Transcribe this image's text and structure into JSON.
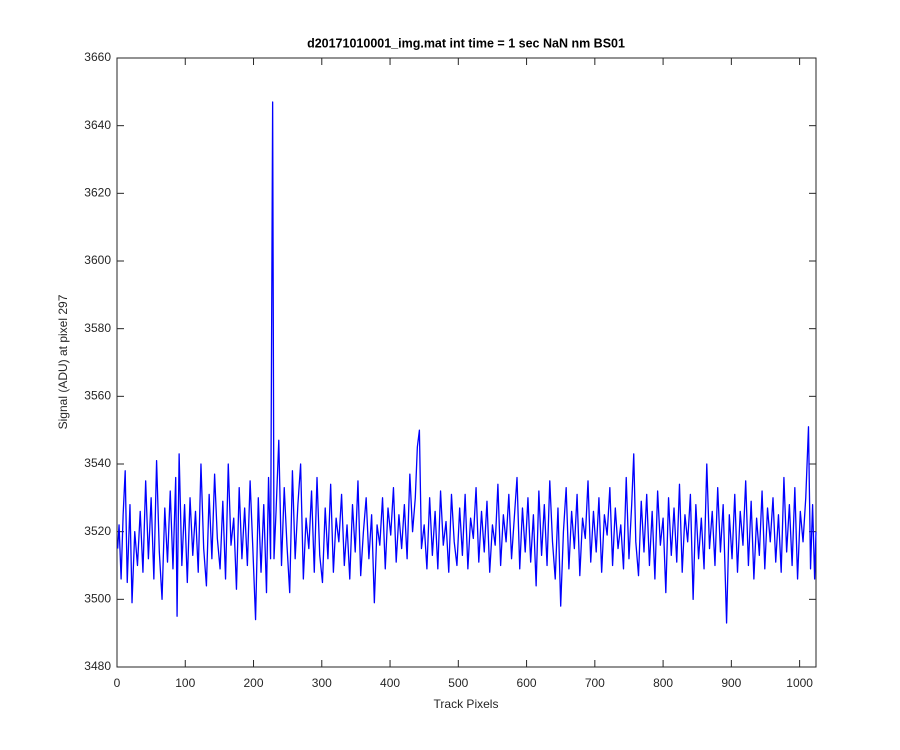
{
  "chart_data": {
    "type": "line",
    "title": "d20171010001_img.mat int time = 1 sec  NaN nm BS01",
    "xlabel": "Track Pixels",
    "ylabel": "Signal (ADU) at pixel 297",
    "color": "#0000ff",
    "xlim": [
      0,
      1024
    ],
    "ylim": [
      3480,
      3660
    ],
    "xticks": [
      0,
      100,
      200,
      300,
      400,
      500,
      600,
      700,
      800,
      900,
      1000
    ],
    "yticks": [
      3480,
      3500,
      3520,
      3540,
      3560,
      3580,
      3600,
      3620,
      3640,
      3660
    ],
    "x": [
      1,
      3,
      6,
      9,
      12,
      15,
      19,
      22,
      26,
      30,
      34,
      38,
      42,
      46,
      50,
      54,
      58,
      62,
      66,
      70,
      74,
      78,
      82,
      86,
      88,
      91,
      95,
      99,
      103,
      107,
      111,
      115,
      119,
      123,
      127,
      131,
      135,
      139,
      143,
      147,
      151,
      155,
      159,
      163,
      167,
      171,
      175,
      179,
      183,
      187,
      191,
      195,
      199,
      203,
      207,
      211,
      215,
      219,
      222,
      225,
      228,
      230,
      233,
      237,
      241,
      245,
      249,
      253,
      257,
      261,
      265,
      269,
      273,
      277,
      281,
      285,
      289,
      293,
      297,
      301,
      305,
      309,
      313,
      317,
      321,
      325,
      329,
      333,
      337,
      341,
      345,
      349,
      353,
      357,
      361,
      365,
      369,
      373,
      377,
      381,
      385,
      389,
      393,
      397,
      401,
      405,
      409,
      413,
      417,
      421,
      425,
      429,
      433,
      437,
      440,
      443,
      446,
      450,
      454,
      458,
      462,
      466,
      470,
      474,
      478,
      482,
      486,
      490,
      494,
      498,
      502,
      506,
      510,
      514,
      518,
      522,
      526,
      530,
      534,
      538,
      542,
      546,
      550,
      554,
      558,
      562,
      566,
      570,
      574,
      578,
      582,
      586,
      590,
      594,
      598,
      602,
      606,
      610,
      614,
      618,
      622,
      626,
      630,
      634,
      638,
      642,
      646,
      650,
      654,
      658,
      662,
      666,
      670,
      674,
      678,
      682,
      686,
      690,
      694,
      698,
      702,
      706,
      710,
      714,
      718,
      722,
      726,
      730,
      734,
      738,
      742,
      746,
      750,
      754,
      757,
      760,
      764,
      768,
      772,
      776,
      780,
      784,
      788,
      792,
      796,
      800,
      804,
      808,
      812,
      816,
      820,
      824,
      828,
      832,
      836,
      840,
      844,
      848,
      852,
      856,
      860,
      864,
      868,
      872,
      876,
      880,
      884,
      888,
      893,
      897,
      901,
      905,
      909,
      913,
      917,
      921,
      925,
      929,
      933,
      937,
      941,
      945,
      949,
      953,
      957,
      961,
      965,
      969,
      973,
      977,
      981,
      985,
      989,
      993,
      997,
      1001,
      1005,
      1009,
      1013,
      1016,
      1019,
      1022,
      1024
    ],
    "values": [
      3515,
      3522,
      3506,
      3525,
      3538,
      3505,
      3528,
      3499,
      3520,
      3510,
      3526,
      3508,
      3535,
      3512,
      3530,
      3506,
      3541,
      3514,
      3500,
      3527,
      3511,
      3532,
      3509,
      3536,
      3495,
      3543,
      3510,
      3528,
      3505,
      3530,
      3513,
      3526,
      3508,
      3540,
      3515,
      3504,
      3531,
      3512,
      3537,
      3518,
      3509,
      3529,
      3506,
      3540,
      3516,
      3524,
      3503,
      3533,
      3512,
      3527,
      3510,
      3535,
      3515,
      3494,
      3530,
      3508,
      3528,
      3502,
      3536,
      3512,
      3647,
      3512,
      3526,
      3547,
      3510,
      3533,
      3516,
      3502,
      3538,
      3512,
      3528,
      3540,
      3506,
      3524,
      3515,
      3532,
      3508,
      3536,
      3513,
      3505,
      3527,
      3512,
      3534,
      3508,
      3524,
      3517,
      3531,
      3510,
      3522,
      3506,
      3528,
      3514,
      3535,
      3507,
      3520,
      3530,
      3512,
      3525,
      3499,
      3522,
      3516,
      3530,
      3509,
      3527,
      3519,
      3533,
      3511,
      3525,
      3515,
      3528,
      3512,
      3537,
      3520,
      3530,
      3545,
      3550,
      3515,
      3522,
      3509,
      3530,
      3513,
      3526,
      3509,
      3532,
      3516,
      3523,
      3508,
      3531,
      3517,
      3510,
      3527,
      3513,
      3531,
      3509,
      3524,
      3518,
      3533,
      3511,
      3526,
      3514,
      3529,
      3508,
      3522,
      3516,
      3534,
      3510,
      3525,
      3517,
      3531,
      3512,
      3524,
      3536,
      3509,
      3527,
      3514,
      3530,
      3511,
      3525,
      3504,
      3532,
      3513,
      3528,
      3510,
      3535,
      3517,
      3506,
      3527,
      3498,
      3520,
      3533,
      3509,
      3526,
      3515,
      3531,
      3507,
      3524,
      3518,
      3535,
      3511,
      3526,
      3514,
      3530,
      3508,
      3525,
      3519,
      3533,
      3510,
      3527,
      3515,
      3522,
      3509,
      3536,
      3512,
      3528,
      3543,
      3517,
      3507,
      3529,
      3514,
      3531,
      3510,
      3526,
      3506,
      3532,
      3516,
      3524,
      3502,
      3530,
      3513,
      3527,
      3511,
      3534,
      3508,
      3525,
      3517,
      3531,
      3500,
      3528,
      3512,
      3524,
      3509,
      3540,
      3515,
      3526,
      3510,
      3533,
      3514,
      3528,
      3493,
      3525,
      3512,
      3531,
      3508,
      3526,
      3516,
      3535,
      3510,
      3529,
      3506,
      3524,
      3513,
      3532,
      3509,
      3527,
      3517,
      3530,
      3511,
      3525,
      3508,
      3536,
      3514,
      3528,
      3510,
      3533,
      3506,
      3526,
      3517,
      3530,
      3551,
      3509,
      3528,
      3506,
      3520
    ]
  }
}
